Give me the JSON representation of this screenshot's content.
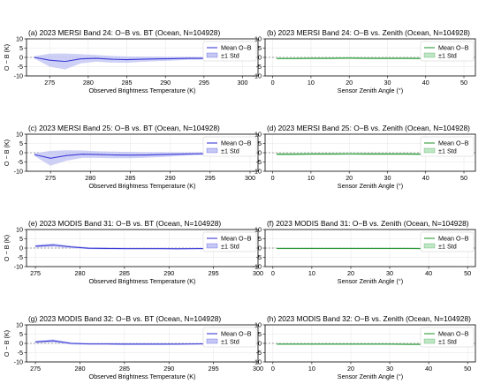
{
  "colors": {
    "blue": "#3b3bd6",
    "blue_fill": "#c5c8f4",
    "green": "#2e9a3a",
    "green_fill": "#bfe6c5"
  },
  "chart_data": [
    {
      "type": "line",
      "title": "(a) 2023 MERSI Band 24: O−B vs. BT (Ocean, N=104928)",
      "xlabel": "Observed Brightness Temperature (K)",
      "ylabel": "O − B (K)",
      "xlim": [
        272,
        302
      ],
      "ylim": [
        -10,
        10
      ],
      "xticks": [
        275,
        280,
        285,
        290,
        295,
        300
      ],
      "yticks": [
        -10,
        -5,
        0,
        5,
        10
      ],
      "legend": [
        "Mean O−B",
        "±1 Std"
      ],
      "color": "blue",
      "x": [
        273,
        275,
        277,
        279,
        281,
        283,
        285,
        287,
        289,
        291,
        293,
        295,
        297,
        299,
        301
      ],
      "mean": [
        0,
        -1.5,
        -2.2,
        -0.8,
        -0.5,
        -1.0,
        -1.2,
        -1.0,
        -0.8,
        -0.7,
        -0.5,
        -0.5,
        -0.3,
        -0.1,
        0.1
      ],
      "std": [
        0.6,
        3.5,
        4.3,
        2.5,
        1.8,
        1.8,
        1.7,
        1.4,
        1.2,
        1.0,
        0.8,
        0.7,
        0.6,
        0.5,
        0.4
      ]
    },
    {
      "type": "line",
      "title": "(b) 2023 MERSI Band 24: O−B vs. Zenith (Ocean, N=104928)",
      "xlabel": "Sensor Zenith Angle (°)",
      "ylabel": "",
      "xlim": [
        -2,
        53
      ],
      "ylim": [
        -10,
        10
      ],
      "xticks": [
        0,
        10,
        20,
        30,
        40,
        50
      ],
      "yticks": [
        -10,
        -5,
        0,
        5,
        10
      ],
      "legend": [
        "Mean O−B",
        "±1 Std"
      ],
      "color": "green",
      "x": [
        1,
        5,
        10,
        15,
        20,
        25,
        30,
        35,
        40,
        45,
        50,
        51
      ],
      "mean": [
        -0.6,
        -0.6,
        -0.5,
        -0.5,
        -0.4,
        -0.5,
        -0.5,
        -0.5,
        -0.6,
        -0.7,
        -0.8,
        -0.6
      ],
      "std": [
        0.5,
        0.5,
        0.5,
        0.5,
        0.5,
        0.5,
        0.5,
        0.5,
        0.5,
        0.6,
        0.6,
        0.5
      ]
    },
    {
      "type": "line",
      "title": "(c) 2023 MERSI Band 25: O−B vs. BT (Ocean, N=104928)",
      "xlabel": "Observed Brightness Temperature (K)",
      "ylabel": "O − B (K)",
      "xlim": [
        272,
        301
      ],
      "ylim": [
        -10,
        10
      ],
      "xticks": [
        275,
        280,
        285,
        290,
        295,
        300
      ],
      "yticks": [
        -10,
        -5,
        0,
        5,
        10
      ],
      "legend": [
        "Mean O−B",
        "±1 Std"
      ],
      "color": "blue",
      "x": [
        273,
        275,
        277,
        279,
        281,
        283,
        285,
        287,
        289,
        291,
        293,
        295,
        297,
        299
      ],
      "mean": [
        -1.0,
        -3.0,
        -1.5,
        -0.8,
        -1.0,
        -1.2,
        -1.3,
        -1.2,
        -1.0,
        -0.8,
        -0.6,
        -0.5,
        -0.4,
        -0.3
      ],
      "std": [
        0.7,
        4.0,
        2.8,
        2.0,
        1.8,
        1.8,
        1.7,
        1.5,
        1.3,
        1.0,
        0.8,
        0.6,
        0.5,
        0.4
      ]
    },
    {
      "type": "line",
      "title": "(d) 2023 MERSI Band 25: O−B vs. Zenith (Ocean, N=104928)",
      "xlabel": "Sensor Zenith Angle (°)",
      "ylabel": "",
      "xlim": [
        -2,
        53
      ],
      "ylim": [
        -10,
        10
      ],
      "xticks": [
        0,
        10,
        20,
        30,
        40,
        50
      ],
      "yticks": [
        -10,
        -5,
        0,
        5,
        10
      ],
      "legend": [
        "Mean O−B",
        "±1 Std"
      ],
      "color": "green",
      "x": [
        1,
        5,
        10,
        15,
        20,
        25,
        30,
        35,
        40,
        45,
        50,
        51
      ],
      "mean": [
        -0.8,
        -0.8,
        -0.7,
        -0.7,
        -0.6,
        -0.7,
        -0.7,
        -0.7,
        -0.8,
        -0.9,
        -1.0,
        -0.8
      ],
      "std": [
        0.6,
        0.6,
        0.6,
        0.6,
        0.6,
        0.6,
        0.6,
        0.6,
        0.6,
        0.7,
        0.7,
        0.6
      ]
    },
    {
      "type": "line",
      "title": "(e) 2023 MODIS Band 31: O−B vs. BT (Ocean, N=104928)",
      "xlabel": "Observed Brightness Temperature (K)",
      "ylabel": "O − B (K)",
      "xlim": [
        274,
        300
      ],
      "ylim": [
        -10,
        10
      ],
      "xticks": [
        275,
        280,
        285,
        290,
        295,
        300
      ],
      "yticks": [
        -10,
        -5,
        0,
        5,
        10
      ],
      "legend": [
        "Mean O−B",
        "±1 Std"
      ],
      "color": "blue",
      "x": [
        275,
        277,
        279,
        281,
        283,
        285,
        287,
        289,
        291,
        293,
        295,
        297,
        299
      ],
      "mean": [
        1.0,
        1.6,
        0.6,
        -0.1,
        -0.2,
        -0.3,
        -0.3,
        -0.3,
        -0.4,
        -0.3,
        -0.2,
        -0.1,
        0.0
      ],
      "std": [
        0.7,
        0.9,
        0.7,
        0.5,
        0.5,
        0.5,
        0.5,
        0.5,
        0.4,
        0.4,
        0.4,
        0.3,
        0.3
      ]
    },
    {
      "type": "line",
      "title": "(f) 2023 MODIS Band 31: O−B vs. Zenith (Ocean, N=104928)",
      "xlabel": "Sensor Zenith Angle (°)",
      "ylabel": "",
      "xlim": [
        -2,
        52
      ],
      "ylim": [
        -10,
        10
      ],
      "xticks": [
        0,
        10,
        20,
        30,
        40,
        50
      ],
      "yticks": [
        -10,
        -5,
        0,
        5,
        10
      ],
      "legend": [
        "Mean O−B",
        "±1 Std"
      ],
      "color": "green",
      "x": [
        1,
        5,
        10,
        15,
        20,
        25,
        30,
        35,
        40,
        45,
        49
      ],
      "mean": [
        -0.2,
        -0.2,
        -0.2,
        -0.2,
        -0.2,
        -0.2,
        -0.2,
        -0.2,
        -0.3,
        -0.3,
        -0.3
      ],
      "std": [
        0.4,
        0.4,
        0.4,
        0.4,
        0.4,
        0.4,
        0.4,
        0.4,
        0.4,
        0.4,
        0.4
      ]
    },
    {
      "type": "line",
      "title": "(g) 2023 MODIS Band 32: O−B vs. BT (Ocean, N=104928)",
      "xlabel": "Observed Brightness Temperature (K)",
      "ylabel": "O − B (K)",
      "xlim": [
        274,
        300
      ],
      "ylim": [
        -10,
        10
      ],
      "xticks": [
        275,
        280,
        285,
        290,
        295,
        300
      ],
      "yticks": [
        -10,
        -5,
        0,
        5,
        10
      ],
      "legend": [
        "Mean O−B",
        "±1 Std"
      ],
      "color": "blue",
      "x": [
        275,
        277,
        279,
        281,
        283,
        285,
        287,
        289,
        291,
        293,
        295,
        297,
        299
      ],
      "mean": [
        0.8,
        1.4,
        0.0,
        -0.3,
        -0.3,
        -0.4,
        -0.4,
        -0.4,
        -0.4,
        -0.3,
        -0.2,
        0.0,
        0.6
      ],
      "std": [
        0.6,
        0.8,
        0.6,
        0.5,
        0.5,
        0.5,
        0.5,
        0.5,
        0.4,
        0.4,
        0.4,
        0.4,
        0.5
      ]
    },
    {
      "type": "line",
      "title": "(h) 2023 MODIS Band 32: O−B vs. Zenith (Ocean, N=104928)",
      "xlabel": "Sensor Zenith Angle (°)",
      "ylabel": "",
      "xlim": [
        -2,
        52
      ],
      "ylim": [
        -10,
        10
      ],
      "xticks": [
        0,
        10,
        20,
        30,
        40,
        50
      ],
      "yticks": [
        -10,
        -5,
        0,
        5,
        10
      ],
      "legend": [
        "Mean O−B",
        "±1 Std"
      ],
      "color": "green",
      "x": [
        1,
        5,
        10,
        15,
        20,
        25,
        30,
        35,
        40,
        45,
        49
      ],
      "mean": [
        -0.4,
        -0.4,
        -0.4,
        -0.4,
        -0.4,
        -0.4,
        -0.4,
        -0.5,
        -0.5,
        -0.5,
        -0.5
      ],
      "std": [
        0.4,
        0.4,
        0.4,
        0.4,
        0.4,
        0.4,
        0.4,
        0.4,
        0.4,
        0.4,
        0.4
      ]
    }
  ]
}
